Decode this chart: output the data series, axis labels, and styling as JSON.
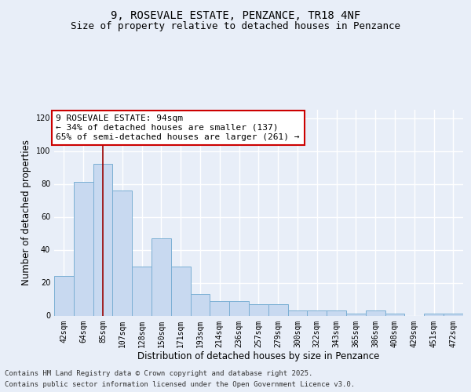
{
  "title": "9, ROSEVALE ESTATE, PENZANCE, TR18 4NF",
  "subtitle": "Size of property relative to detached houses in Penzance",
  "xlabel": "Distribution of detached houses by size in Penzance",
  "ylabel": "Number of detached properties",
  "categories": [
    "42sqm",
    "64sqm",
    "85sqm",
    "107sqm",
    "128sqm",
    "150sqm",
    "171sqm",
    "193sqm",
    "214sqm",
    "236sqm",
    "257sqm",
    "279sqm",
    "300sqm",
    "322sqm",
    "343sqm",
    "365sqm",
    "386sqm",
    "408sqm",
    "429sqm",
    "451sqm",
    "472sqm"
  ],
  "values": [
    24,
    81,
    92,
    76,
    30,
    47,
    30,
    13,
    9,
    9,
    7,
    7,
    3,
    3,
    3,
    1,
    3,
    1,
    0,
    1,
    1
  ],
  "bar_color": "#c8d9f0",
  "bar_edge_color": "#7bafd4",
  "ylim": [
    0,
    125
  ],
  "yticks": [
    0,
    20,
    40,
    60,
    80,
    100,
    120
  ],
  "red_line_x": 2.0,
  "annotation_text_line1": "9 ROSEVALE ESTATE: 94sqm",
  "annotation_text_line2": "← 34% of detached houses are smaller (137)",
  "annotation_text_line3": "65% of semi-detached houses are larger (261) →",
  "annotation_border_color": "#cc0000",
  "footer_line1": "Contains HM Land Registry data © Crown copyright and database right 2025.",
  "footer_line2": "Contains public sector information licensed under the Open Government Licence v3.0.",
  "background_color": "#e8eef8",
  "grid_color": "#ffffff",
  "title_fontsize": 10,
  "subtitle_fontsize": 9,
  "label_fontsize": 8.5,
  "tick_fontsize": 7,
  "annotation_fontsize": 8,
  "footer_fontsize": 6.5
}
